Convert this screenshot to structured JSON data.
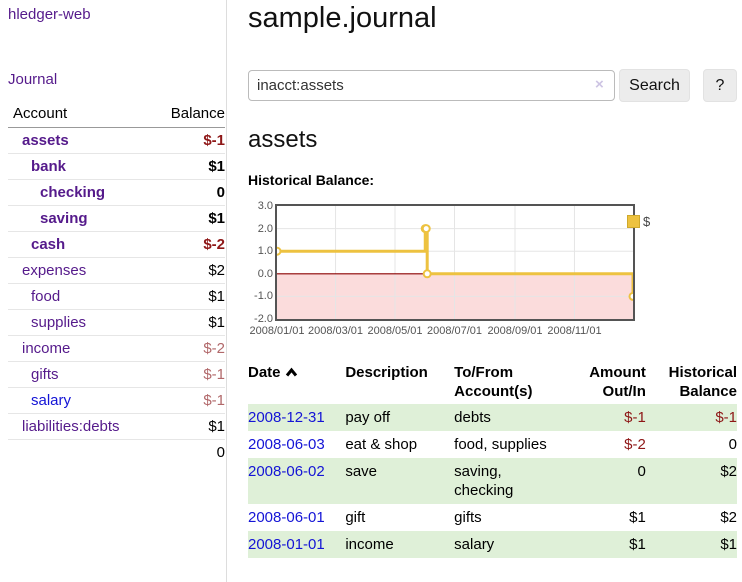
{
  "app": {
    "title": "hledger-web"
  },
  "sidebar": {
    "journal_link": "Journal",
    "accounts_table": {
      "col_account": "Account",
      "col_balance": "Balance",
      "accounts": [
        {
          "name": "assets",
          "balance": "$-1",
          "depth": 1,
          "bold": true,
          "negative": true,
          "link_color": "purple"
        },
        {
          "name": "bank",
          "balance": "$1",
          "depth": 2,
          "bold": true,
          "negative": false,
          "link_color": "purple"
        },
        {
          "name": "checking",
          "balance": "0",
          "depth": 3,
          "bold": true,
          "negative": false,
          "link_color": "purple"
        },
        {
          "name": "saving",
          "balance": "$1",
          "depth": 3,
          "bold": true,
          "negative": false,
          "link_color": "purple"
        },
        {
          "name": "cash",
          "balance": "$-2",
          "depth": 2,
          "bold": true,
          "negative": true,
          "link_color": "purple"
        },
        {
          "name": "expenses",
          "balance": "$2",
          "depth": 1,
          "bold": false,
          "negative": false,
          "link_color": "purple"
        },
        {
          "name": "food",
          "balance": "$1",
          "depth": 2,
          "bold": false,
          "negative": false,
          "link_color": "purple"
        },
        {
          "name": "supplies",
          "balance": "$1",
          "depth": 2,
          "bold": false,
          "negative": false,
          "link_color": "purple"
        },
        {
          "name": "income",
          "balance": "$-2",
          "depth": 1,
          "bold": false,
          "negative": true,
          "link_color": "purple"
        },
        {
          "name": "gifts",
          "balance": "$-1",
          "depth": 2,
          "bold": false,
          "negative": true,
          "link_color": "purple"
        },
        {
          "name": "salary",
          "balance": "$-1",
          "depth": 2,
          "bold": false,
          "negative": true,
          "link_color": "blue"
        },
        {
          "name": "liabilities:debts",
          "balance": "$1",
          "depth": 1,
          "bold": false,
          "negative": false,
          "link_color": "purple"
        }
      ],
      "total": "0"
    }
  },
  "main": {
    "page_title": "sample.journal",
    "search": {
      "value": "inacct:assets",
      "clear_icon": "×",
      "button_label": "Search",
      "help_label": "?"
    },
    "account_heading": "assets",
    "chart_heading": "Historical Balance:"
  },
  "chart_data": {
    "type": "line",
    "step": true,
    "title": "Historical Balance:",
    "series": [
      {
        "name": "$",
        "color": "#edc240",
        "points": [
          [
            "2008-01-01",
            1
          ],
          [
            "2008-06-01",
            2
          ],
          [
            "2008-06-02",
            2
          ],
          [
            "2008-06-03",
            0
          ],
          [
            "2008-12-31",
            -1
          ]
        ]
      }
    ],
    "x_range": [
      "2008-01-01",
      "2008-12-31"
    ],
    "y_range": [
      -2,
      3
    ],
    "x_ticks": [
      "2008/01/01",
      "2008/03/01",
      "2008/05/01",
      "2008/07/01",
      "2008/09/01",
      "2008/11/01"
    ],
    "y_ticks": [
      3.0,
      2.0,
      1.0,
      0.0,
      -1.0,
      -2.0
    ],
    "y_tick_labels": [
      "3.0",
      "2.0",
      "1.0",
      "0.0",
      "-1.0",
      "-2.0"
    ],
    "legend": {
      "label": "$",
      "position": "top-right"
    },
    "grid": true
  },
  "register": {
    "headers": {
      "date": "Date",
      "description": "Description",
      "accounts": "To/From Account(s)",
      "amount": "Amount Out/In",
      "balance": "Historical Balance"
    },
    "sort": {
      "column": "date",
      "direction": "ascending"
    },
    "rows": [
      {
        "date": "2008-12-31",
        "description": "pay off",
        "accounts": "debts",
        "amount": "$-1",
        "amount_negative": true,
        "balance": "$-1",
        "balance_negative": true
      },
      {
        "date": "2008-06-03",
        "description": "eat & shop",
        "accounts": "food, supplies",
        "amount": "$-2",
        "amount_negative": true,
        "balance": "0",
        "balance_negative": false
      },
      {
        "date": "2008-06-02",
        "description": "save",
        "accounts": "saving, checking",
        "amount": "0",
        "amount_negative": false,
        "balance": "$2",
        "balance_negative": false
      },
      {
        "date": "2008-06-01",
        "description": "gift",
        "accounts": "gifts",
        "amount": "$1",
        "amount_negative": false,
        "balance": "$2",
        "balance_negative": false
      },
      {
        "date": "2008-01-01",
        "description": "income",
        "accounts": "salary",
        "amount": "$1",
        "amount_negative": false,
        "balance": "$1",
        "balance_negative": false
      }
    ]
  },
  "colors": {
    "purple_link": "#551a8b",
    "blue_link": "#1414d6",
    "negative": "#8e1717",
    "negative_muted": "#b1686a",
    "stripe_green": "#dff0d8",
    "gold": "#edc240",
    "negative_region": "#fbdcdc",
    "zero_line": "#8b0000",
    "grid_line": "#e5e5e5",
    "chart_border": "#545454",
    "lavender": "#cdc4e3"
  }
}
